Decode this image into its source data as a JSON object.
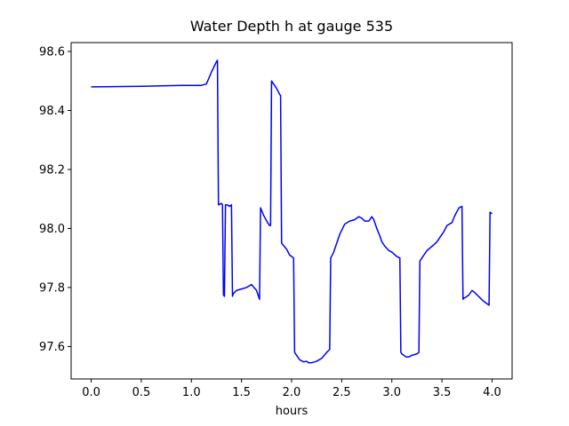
{
  "chart_data": {
    "type": "line",
    "title": "Water Depth h at gauge 535",
    "xlabel": "hours",
    "ylabel": "",
    "xlim": [
      -0.2,
      4.2
    ],
    "ylim": [
      97.49,
      98.63
    ],
    "x_ticks": [
      0.0,
      0.5,
      1.0,
      1.5,
      2.0,
      2.5,
      3.0,
      3.5,
      4.0
    ],
    "x_tick_labels": [
      "0.0",
      "0.5",
      "1.0",
      "1.5",
      "2.0",
      "2.5",
      "3.0",
      "3.5",
      "4.0"
    ],
    "y_ticks": [
      97.6,
      97.8,
      98.0,
      98.2,
      98.4,
      98.6
    ],
    "y_tick_labels": [
      "97.6",
      "97.8",
      "98.0",
      "98.2",
      "98.4",
      "98.6"
    ],
    "grid": false,
    "legend": "none",
    "series": [
      {
        "color": "#0000ff",
        "x": [
          0.0,
          0.5,
          0.9,
          1.0,
          1.1,
          1.15,
          1.2,
          1.25,
          1.26,
          1.27,
          1.3,
          1.31,
          1.32,
          1.33,
          1.34,
          1.36,
          1.38,
          1.4,
          1.41,
          1.42,
          1.45,
          1.5,
          1.55,
          1.6,
          1.65,
          1.68,
          1.69,
          1.72,
          1.76,
          1.78,
          1.79,
          1.8,
          1.85,
          1.88,
          1.89,
          1.9,
          1.95,
          1.98,
          2.0,
          2.02,
          2.03,
          2.05,
          2.08,
          2.12,
          2.15,
          2.17,
          2.2,
          2.25,
          2.3,
          2.35,
          2.38,
          2.39,
          2.42,
          2.48,
          2.53,
          2.58,
          2.63,
          2.67,
          2.7,
          2.73,
          2.77,
          2.8,
          2.82,
          2.85,
          2.88,
          2.9,
          2.93,
          2.97,
          3.0,
          3.05,
          3.08,
          3.09,
          3.1,
          3.14,
          3.17,
          3.2,
          3.25,
          3.27,
          3.28,
          3.3,
          3.35,
          3.42,
          3.45,
          3.48,
          3.52,
          3.55,
          3.6,
          3.63,
          3.67,
          3.7,
          3.71,
          3.72,
          3.73,
          3.77,
          3.8,
          3.82,
          3.85,
          3.88,
          3.91,
          3.95,
          3.97,
          3.98,
          4.0
        ],
        "y": [
          98.48,
          98.482,
          98.485,
          98.485,
          98.485,
          98.49,
          98.53,
          98.565,
          98.57,
          98.08,
          98.085,
          98.08,
          97.775,
          97.77,
          98.08,
          98.08,
          98.075,
          98.08,
          97.77,
          97.78,
          97.79,
          97.795,
          97.8,
          97.81,
          97.79,
          97.76,
          98.07,
          98.045,
          98.02,
          98.01,
          98.01,
          98.5,
          98.475,
          98.455,
          98.45,
          97.95,
          97.93,
          97.91,
          97.905,
          97.9,
          97.58,
          97.57,
          97.555,
          97.548,
          97.55,
          97.545,
          97.545,
          97.55,
          97.56,
          97.58,
          97.59,
          97.9,
          97.92,
          97.98,
          98.015,
          98.025,
          98.03,
          98.04,
          98.035,
          98.025,
          98.025,
          98.04,
          98.03,
          98.0,
          97.975,
          97.955,
          97.94,
          97.925,
          97.92,
          97.905,
          97.9,
          97.58,
          97.575,
          97.565,
          97.565,
          97.57,
          97.575,
          97.58,
          97.89,
          97.9,
          97.925,
          97.945,
          97.955,
          97.97,
          97.99,
          98.01,
          98.02,
          98.045,
          98.07,
          98.075,
          97.76,
          97.765,
          97.765,
          97.775,
          97.79,
          97.785,
          97.775,
          97.765,
          97.755,
          97.745,
          97.74,
          98.055,
          98.05
        ]
      }
    ]
  }
}
